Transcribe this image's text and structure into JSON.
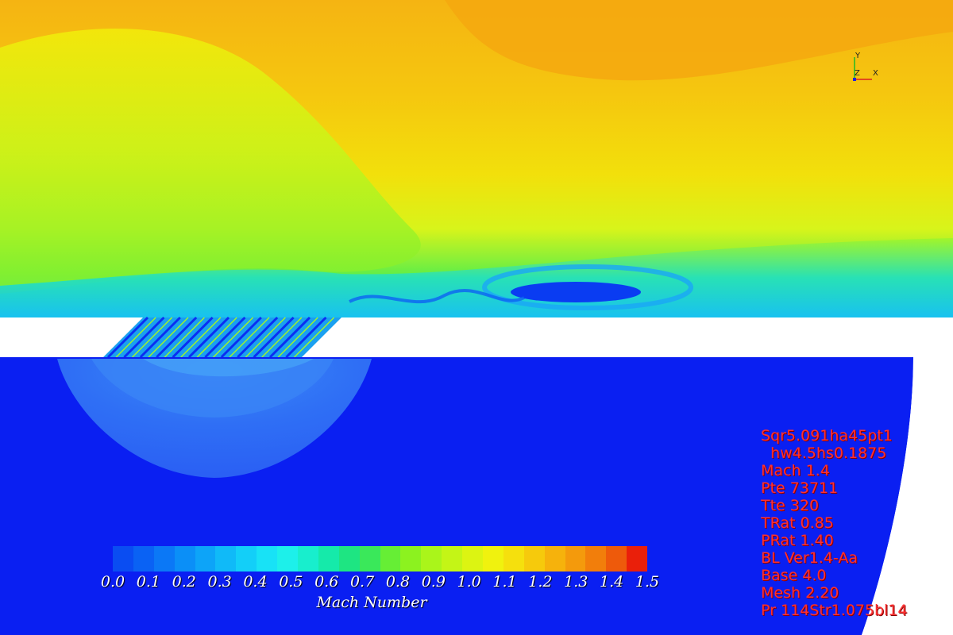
{
  "render": {
    "field": "Mach Number",
    "background_color": "#0a1ff2",
    "colors": {
      "low_speed_blue": "#0a1ff2",
      "plenum_light_blue": "#2f6ff5",
      "cyan": "#18d8ee",
      "green": "#9ff52a",
      "yellow": "#f2f20a",
      "orange": "#f5b412",
      "wall_white": "#ffffff"
    }
  },
  "axes": {
    "y_label": "Y",
    "z_label": "Z",
    "x_label": "X",
    "y_color": "#22bb22",
    "x_color": "#dd2222",
    "z_color": "#2222dd"
  },
  "colorbar": {
    "title": "Mach Number",
    "min": 0.0,
    "max": 1.5,
    "ticks": [
      "0.0",
      "0.1",
      "0.2",
      "0.3",
      "0.4",
      "0.5",
      "0.6",
      "0.7",
      "0.8",
      "0.9",
      "1.0",
      "1.1",
      "1.2",
      "1.3",
      "1.4",
      "1.5"
    ],
    "swatches": [
      "#0a4df2",
      "#0a62f4",
      "#0b78f6",
      "#0b8ff7",
      "#0da4f8",
      "#10baf8",
      "#13cff8",
      "#18e2f6",
      "#1df0ea",
      "#18eecd",
      "#15eaaa",
      "#1ee582",
      "#3ae85a",
      "#66ee35",
      "#8cf21f",
      "#aaf51a",
      "#c4f516",
      "#dcf412",
      "#f0f20e",
      "#f5e00d",
      "#f6ca0c",
      "#f6b20c",
      "#f49a0c",
      "#f27e0b",
      "#ee5a0b",
      "#ea1f0a"
    ]
  },
  "run_info": {
    "lines": [
      "Sqr5.091ha45pt1",
      "  hw4.5hs0.1875",
      "Mach 1.4",
      "Pte 73711",
      "Tte 320",
      "TRat 0.85",
      "PRat 1.40",
      "BL Ver1.4-Aa",
      "Base 4.0",
      "Mesh 2.20",
      "Pr 114Str1.075bl14"
    ],
    "text_color": "#ff3030"
  }
}
